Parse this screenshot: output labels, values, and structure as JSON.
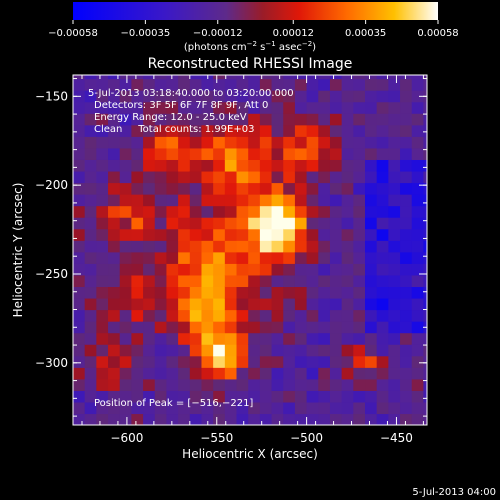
{
  "chart_data": {
    "type": "heatmap",
    "title": "Reconstructed RHESSI Image",
    "xlabel": "Heliocentric X (arcsec)",
    "ylabel": "Heliocentric Y (arcsec)",
    "xlim": [
      -630,
      -433
    ],
    "ylim": [
      -335,
      -138
    ],
    "x_ticks": [
      -600,
      -550,
      -500,
      -450
    ],
    "y_ticks": [
      -300,
      -250,
      -200,
      -150
    ],
    "x_tick_labels": [
      "−600",
      "−550",
      "−500",
      "−450"
    ],
    "y_tick_labels": [
      "−300",
      "−250",
      "−200",
      "−150"
    ],
    "colorbar": {
      "min": -0.00058,
      "max": 0.00058,
      "ticks": [
        -0.00058,
        -0.00035,
        -0.00012,
        0.00012,
        0.00035,
        0.00058
      ],
      "tick_labels": [
        "−0.00058",
        "−0.00035",
        "−0.00012",
        "0.00012",
        "0.00035",
        "0.00058"
      ],
      "units_prefix": "(photons cm",
      "units_exp1": "−2",
      "units_mid": " s",
      "units_exp2": "−1",
      "units_mid2": " asec",
      "units_exp3": "−2",
      "units_suffix": ")",
      "colormap": "rhessi-blue-purple-red-yellow-white"
    },
    "info_lines": [
      "5-Jul-2013 03:18:40.000 to 03:20:00.000",
      "Detectors: 3F 5F 6F 7F 8F 9F, Att 0",
      "Energy Range: 12.0 - 25.0 keV",
      "Clean     Total counts: 1.99E+03"
    ],
    "peak_label": "Position of Peak = [−516,−221]",
    "peak": [
      -516,
      -221
    ],
    "grid": false
  },
  "footer_timestamp": "5-Jul-2013 04:00"
}
